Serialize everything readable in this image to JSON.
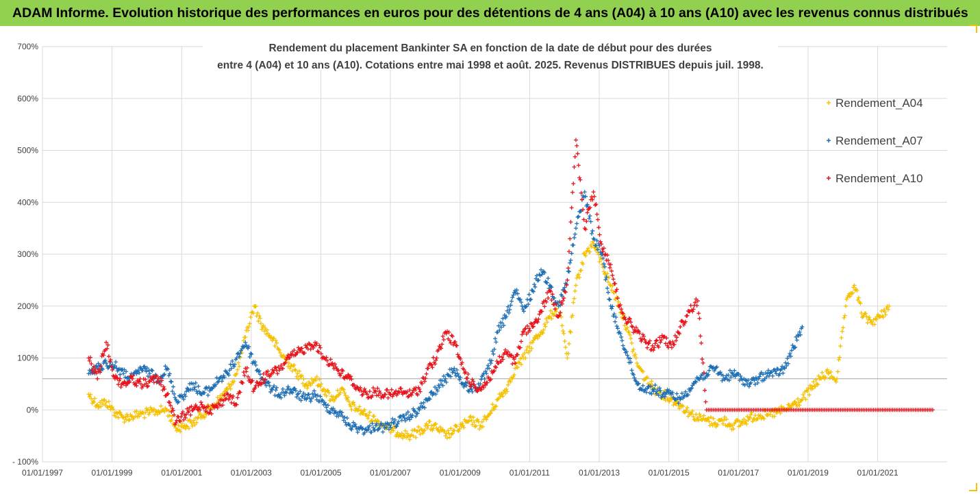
{
  "banner": {
    "title": "ADAM Informe. Evolution historique des performances en euros pour des détentions de 4 ans (A04) à 10 ans (A10) avec les revenus connus distribués",
    "bg": "#92d050"
  },
  "chart_data": {
    "type": "scatter",
    "title_line1": "Rendement du placement Bankinter SA en fonction de la date de début pour des durées",
    "title_line2": "entre 4 (A04) et 10 ans (A10). Cotations entre mai 1998 et août. 2025. Revenus DISTRIBUES depuis juil. 1998.",
    "xlabel": "",
    "ylabel": "",
    "x_range": [
      "1997-01-01",
      "2022-12-31"
    ],
    "x_ticks": [
      "01/01/1997",
      "01/01/1999",
      "01/01/2001",
      "01/01/2003",
      "01/01/2005",
      "01/01/2007",
      "01/01/2009",
      "01/01/2011",
      "01/01/2013",
      "01/01/2015",
      "01/01/2017",
      "01/01/2019",
      "01/01/2021"
    ],
    "y_range": [
      -100,
      700
    ],
    "y_ticks": [
      "- 100%",
      "0%",
      "100%",
      "200%",
      "300%",
      "400%",
      "500%",
      "600%",
      "700%"
    ],
    "grid": "vertical and horizontal",
    "reference_line": 60,
    "legend_position": "right",
    "series": [
      {
        "name": "Rendement_A04",
        "color": "#f5c000",
        "marker": "+",
        "points": [
          [
            "1998-05-01",
            30
          ],
          [
            "1998-08-01",
            10
          ],
          [
            "1998-11-01",
            15
          ],
          [
            "1999-02-01",
            -5
          ],
          [
            "1999-05-01",
            -15
          ],
          [
            "1999-08-01",
            -12
          ],
          [
            "1999-11-01",
            -8
          ],
          [
            "2000-02-01",
            -5
          ],
          [
            "2000-05-01",
            -2
          ],
          [
            "2000-08-01",
            0
          ],
          [
            "2000-11-01",
            -35
          ],
          [
            "2001-02-01",
            -30
          ],
          [
            "2001-05-01",
            -25
          ],
          [
            "2001-08-01",
            -10
          ],
          [
            "2001-11-01",
            5
          ],
          [
            "2002-02-01",
            20
          ],
          [
            "2002-05-01",
            40
          ],
          [
            "2002-08-01",
            70
          ],
          [
            "2002-11-01",
            140
          ],
          [
            "2003-02-01",
            200
          ],
          [
            "2003-05-01",
            160
          ],
          [
            "2003-08-01",
            140
          ],
          [
            "2003-11-01",
            110
          ],
          [
            "2004-02-01",
            90
          ],
          [
            "2004-05-01",
            70
          ],
          [
            "2004-08-01",
            50
          ],
          [
            "2004-11-01",
            60
          ],
          [
            "2005-02-01",
            40
          ],
          [
            "2005-05-01",
            20
          ],
          [
            "2005-08-01",
            40
          ],
          [
            "2005-11-01",
            10
          ],
          [
            "2006-02-01",
            0
          ],
          [
            "2006-05-01",
            -10
          ],
          [
            "2006-08-01",
            -20
          ],
          [
            "2006-11-01",
            -30
          ],
          [
            "2007-02-01",
            -40
          ],
          [
            "2007-05-01",
            -45
          ],
          [
            "2007-08-01",
            -50
          ],
          [
            "2007-11-01",
            -40
          ],
          [
            "2008-02-01",
            -30
          ],
          [
            "2008-05-01",
            -35
          ],
          [
            "2008-08-01",
            -50
          ],
          [
            "2008-11-01",
            -40
          ],
          [
            "2009-02-01",
            -30
          ],
          [
            "2009-05-01",
            -20
          ],
          [
            "2009-08-01",
            -30
          ],
          [
            "2009-11-01",
            -10
          ],
          [
            "2010-02-01",
            20
          ],
          [
            "2010-05-01",
            40
          ],
          [
            "2010-08-01",
            80
          ],
          [
            "2010-11-01",
            100
          ],
          [
            "2011-02-01",
            130
          ],
          [
            "2011-05-01",
            150
          ],
          [
            "2011-08-01",
            180
          ],
          [
            "2011-11-01",
            200
          ],
          [
            "2012-02-01",
            100
          ],
          [
            "2012-05-01",
            240
          ],
          [
            "2012-08-01",
            300
          ],
          [
            "2012-11-01",
            320
          ],
          [
            "2013-02-01",
            280
          ],
          [
            "2013-05-01",
            240
          ],
          [
            "2013-08-01",
            200
          ],
          [
            "2013-11-01",
            150
          ],
          [
            "2014-02-01",
            90
          ],
          [
            "2014-05-01",
            60
          ],
          [
            "2014-08-01",
            40
          ],
          [
            "2014-11-01",
            30
          ],
          [
            "2015-02-01",
            20
          ],
          [
            "2015-05-01",
            10
          ],
          [
            "2015-08-01",
            -5
          ],
          [
            "2015-11-01",
            -15
          ],
          [
            "2016-02-01",
            -20
          ],
          [
            "2016-05-01",
            -25
          ],
          [
            "2016-08-01",
            -20
          ],
          [
            "2016-11-01",
            -30
          ],
          [
            "2017-02-01",
            -25
          ],
          [
            "2017-05-01",
            -15
          ],
          [
            "2017-08-01",
            -10
          ],
          [
            "2017-11-01",
            -10
          ],
          [
            "2018-02-01",
            -5
          ],
          [
            "2018-05-01",
            0
          ],
          [
            "2018-08-01",
            10
          ],
          [
            "2018-11-01",
            20
          ],
          [
            "2019-02-01",
            40
          ],
          [
            "2019-05-01",
            60
          ],
          [
            "2019-08-01",
            70
          ],
          [
            "2019-11-01",
            60
          ],
          [
            "2020-02-01",
            200
          ],
          [
            "2020-05-01",
            240
          ],
          [
            "2020-08-01",
            180
          ],
          [
            "2020-11-01",
            170
          ],
          [
            "2021-02-01",
            180
          ],
          [
            "2021-05-01",
            200
          ]
        ]
      },
      {
        "name": "Rendement_A07",
        "color": "#1f6fb5",
        "marker": "+",
        "points": [
          [
            "1998-05-01",
            70
          ],
          [
            "1998-08-01",
            80
          ],
          [
            "1998-11-01",
            90
          ],
          [
            "1999-02-01",
            85
          ],
          [
            "1999-05-01",
            70
          ],
          [
            "1999-08-01",
            60
          ],
          [
            "1999-11-01",
            80
          ],
          [
            "2000-02-01",
            70
          ],
          [
            "2000-05-01",
            60
          ],
          [
            "2000-08-01",
            80
          ],
          [
            "2000-11-01",
            20
          ],
          [
            "2001-02-01",
            30
          ],
          [
            "2001-05-01",
            50
          ],
          [
            "2001-08-01",
            30
          ],
          [
            "2001-11-01",
            40
          ],
          [
            "2002-02-01",
            60
          ],
          [
            "2002-05-01",
            70
          ],
          [
            "2002-08-01",
            100
          ],
          [
            "2002-11-01",
            130
          ],
          [
            "2003-02-01",
            90
          ],
          [
            "2003-05-01",
            60
          ],
          [
            "2003-08-01",
            40
          ],
          [
            "2003-11-01",
            30
          ],
          [
            "2004-02-01",
            40
          ],
          [
            "2004-05-01",
            30
          ],
          [
            "2004-08-01",
            20
          ],
          [
            "2004-11-01",
            30
          ],
          [
            "2005-02-01",
            10
          ],
          [
            "2005-05-01",
            0
          ],
          [
            "2005-08-01",
            -10
          ],
          [
            "2005-11-01",
            -30
          ],
          [
            "2006-02-01",
            -35
          ],
          [
            "2006-05-01",
            -40
          ],
          [
            "2006-08-01",
            -30
          ],
          [
            "2006-11-01",
            -35
          ],
          [
            "2007-02-01",
            -25
          ],
          [
            "2007-05-01",
            -20
          ],
          [
            "2007-08-01",
            -10
          ],
          [
            "2007-11-01",
            0
          ],
          [
            "2008-02-01",
            20
          ],
          [
            "2008-05-01",
            40
          ],
          [
            "2008-08-01",
            60
          ],
          [
            "2008-11-01",
            80
          ],
          [
            "2009-02-01",
            50
          ],
          [
            "2009-05-01",
            40
          ],
          [
            "2009-08-01",
            50
          ],
          [
            "2009-11-01",
            80
          ],
          [
            "2010-02-01",
            150
          ],
          [
            "2010-05-01",
            180
          ],
          [
            "2010-08-01",
            230
          ],
          [
            "2010-11-01",
            190
          ],
          [
            "2011-02-01",
            230
          ],
          [
            "2011-05-01",
            270
          ],
          [
            "2011-08-01",
            240
          ],
          [
            "2011-11-01",
            200
          ],
          [
            "2012-02-01",
            250
          ],
          [
            "2012-05-01",
            350
          ],
          [
            "2012-08-01",
            420
          ],
          [
            "2012-11-01",
            330
          ],
          [
            "2013-02-01",
            300
          ],
          [
            "2013-05-01",
            200
          ],
          [
            "2013-08-01",
            150
          ],
          [
            "2013-11-01",
            100
          ],
          [
            "2014-02-01",
            50
          ],
          [
            "2014-05-01",
            40
          ],
          [
            "2014-08-01",
            40
          ],
          [
            "2014-11-01",
            30
          ],
          [
            "2015-02-01",
            30
          ],
          [
            "2015-05-01",
            20
          ],
          [
            "2015-08-01",
            40
          ],
          [
            "2015-11-01",
            60
          ],
          [
            "2016-02-01",
            70
          ],
          [
            "2016-05-01",
            80
          ],
          [
            "2016-08-01",
            60
          ],
          [
            "2016-11-01",
            70
          ],
          [
            "2017-02-01",
            60
          ],
          [
            "2017-05-01",
            50
          ],
          [
            "2017-08-01",
            60
          ],
          [
            "2017-11-01",
            70
          ],
          [
            "2018-02-01",
            70
          ],
          [
            "2018-05-01",
            80
          ],
          [
            "2018-08-01",
            120
          ],
          [
            "2018-11-01",
            160
          ]
        ]
      },
      {
        "name": "Rendement_A10",
        "color": "#e8141b",
        "marker": "+",
        "points": [
          [
            "1998-05-01",
            100
          ],
          [
            "1998-08-01",
            60
          ],
          [
            "1998-11-01",
            130
          ],
          [
            "1999-02-01",
            60
          ],
          [
            "1999-05-01",
            50
          ],
          [
            "1999-08-01",
            60
          ],
          [
            "1999-11-01",
            50
          ],
          [
            "2000-02-01",
            55
          ],
          [
            "2000-05-01",
            60
          ],
          [
            "2000-08-01",
            30
          ],
          [
            "2000-11-01",
            -25
          ],
          [
            "2001-02-01",
            -10
          ],
          [
            "2001-05-01",
            0
          ],
          [
            "2001-08-01",
            10
          ],
          [
            "2001-11-01",
            0
          ],
          [
            "2002-02-01",
            10
          ],
          [
            "2002-05-01",
            30
          ],
          [
            "2002-08-01",
            10
          ],
          [
            "2002-11-01",
            80
          ],
          [
            "2003-02-01",
            40
          ],
          [
            "2003-05-01",
            60
          ],
          [
            "2003-08-01",
            70
          ],
          [
            "2003-11-01",
            80
          ],
          [
            "2004-02-01",
            100
          ],
          [
            "2004-05-01",
            110
          ],
          [
            "2004-08-01",
            120
          ],
          [
            "2004-11-01",
            130
          ],
          [
            "2005-02-01",
            100
          ],
          [
            "2005-05-01",
            90
          ],
          [
            "2005-08-01",
            70
          ],
          [
            "2005-11-01",
            60
          ],
          [
            "2006-02-01",
            40
          ],
          [
            "2006-05-01",
            30
          ],
          [
            "2006-08-01",
            35
          ],
          [
            "2006-11-01",
            30
          ],
          [
            "2007-02-01",
            30
          ],
          [
            "2007-05-01",
            35
          ],
          [
            "2007-08-01",
            30
          ],
          [
            "2007-11-01",
            40
          ],
          [
            "2008-02-01",
            80
          ],
          [
            "2008-05-01",
            100
          ],
          [
            "2008-08-01",
            150
          ],
          [
            "2008-11-01",
            130
          ],
          [
            "2009-02-01",
            80
          ],
          [
            "2009-05-01",
            50
          ],
          [
            "2009-08-01",
            40
          ],
          [
            "2009-11-01",
            60
          ],
          [
            "2010-02-01",
            90
          ],
          [
            "2010-05-01",
            110
          ],
          [
            "2010-08-01",
            90
          ],
          [
            "2010-11-01",
            150
          ],
          [
            "2011-02-01",
            160
          ],
          [
            "2011-05-01",
            190
          ],
          [
            "2011-08-01",
            230
          ],
          [
            "2011-11-01",
            180
          ],
          [
            "2012-02-01",
            250
          ],
          [
            "2012-05-01",
            520
          ],
          [
            "2012-08-01",
            350
          ],
          [
            "2012-11-01",
            420
          ],
          [
            "2013-02-01",
            310
          ],
          [
            "2013-05-01",
            280
          ],
          [
            "2013-08-01",
            200
          ],
          [
            "2013-11-01",
            170
          ],
          [
            "2014-02-01",
            150
          ],
          [
            "2014-05-01",
            130
          ],
          [
            "2014-08-01",
            120
          ],
          [
            "2014-11-01",
            140
          ],
          [
            "2015-02-01",
            120
          ],
          [
            "2015-05-01",
            160
          ],
          [
            "2015-08-01",
            190
          ],
          [
            "2015-11-01",
            210
          ],
          [
            "2016-02-01",
            0
          ],
          [
            "2016-08-01",
            0
          ],
          [
            "2017-02-01",
            0
          ],
          [
            "2017-08-01",
            0
          ],
          [
            "2018-02-01",
            0
          ],
          [
            "2018-08-01",
            0
          ],
          [
            "2019-02-01",
            0
          ],
          [
            "2019-08-01",
            0
          ],
          [
            "2020-02-01",
            0
          ],
          [
            "2020-08-01",
            0
          ],
          [
            "2021-02-01",
            0
          ],
          [
            "2021-08-01",
            0
          ],
          [
            "2022-02-01",
            0
          ],
          [
            "2022-08-01",
            0
          ]
        ]
      }
    ]
  }
}
